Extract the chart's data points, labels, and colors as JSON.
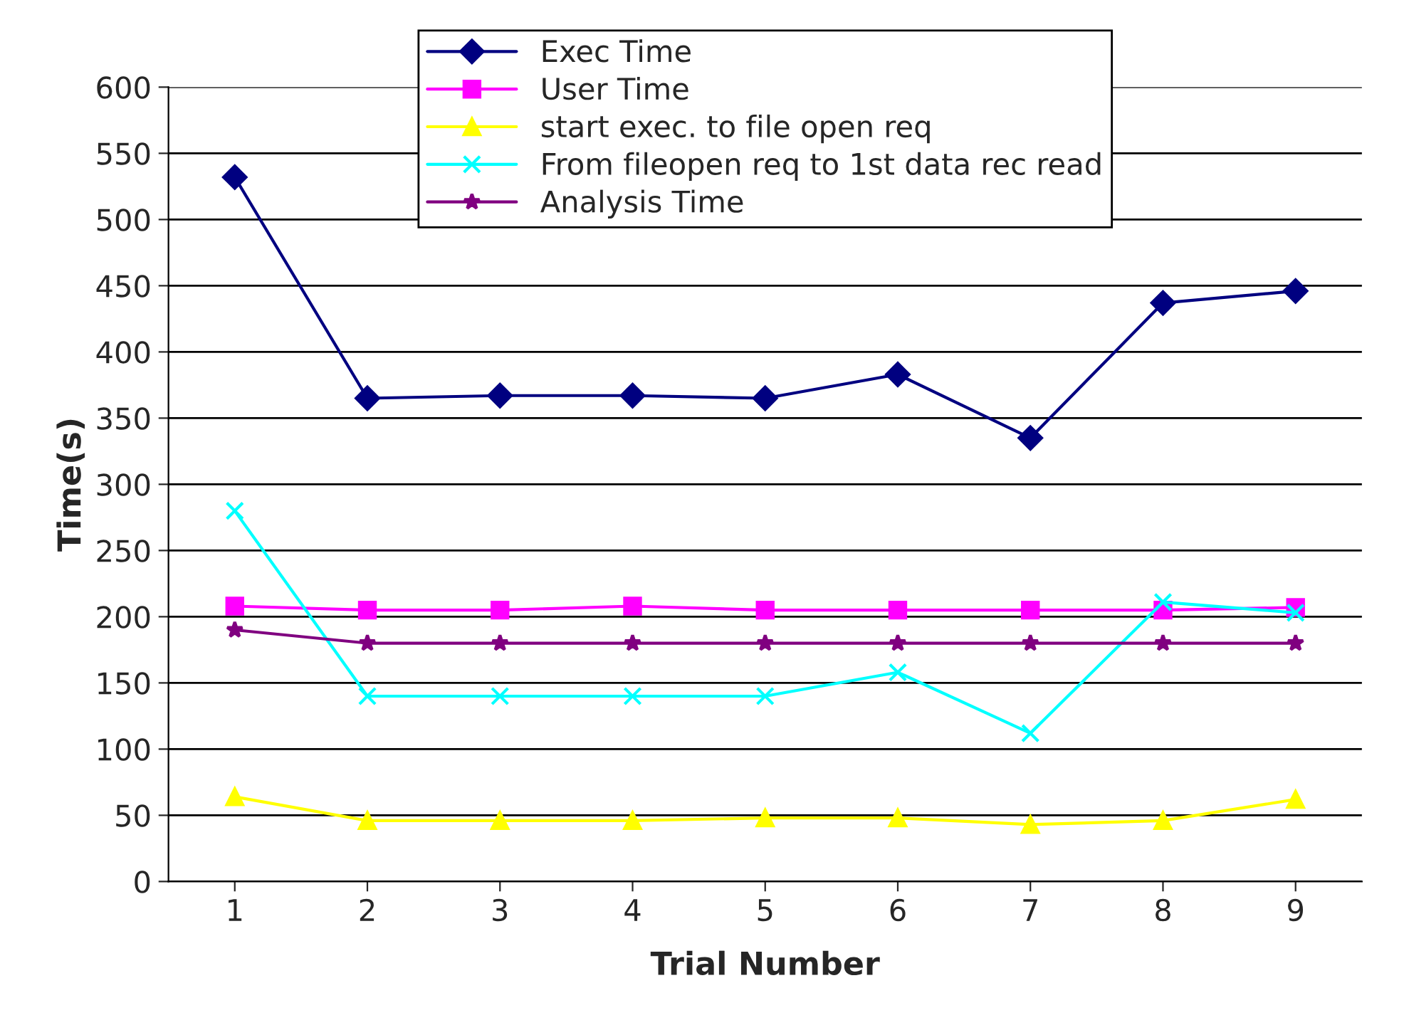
{
  "chart_data": {
    "type": "line",
    "xlabel": "Trial Number",
    "ylabel": "Time(s)",
    "categories": [
      "1",
      "2",
      "3",
      "4",
      "5",
      "6",
      "7",
      "8",
      "9"
    ],
    "series": [
      {
        "name": "Exec Time",
        "color": "#000080",
        "marker": "diamond",
        "values": [
          532,
          365,
          367,
          367,
          365,
          383,
          335,
          437,
          446
        ]
      },
      {
        "name": "User Time",
        "color": "#ff00ff",
        "marker": "square",
        "values": [
          208,
          205,
          205,
          208,
          205,
          205,
          205,
          205,
          207
        ]
      },
      {
        "name": "start exec. to file open req",
        "color": "#ffff00",
        "marker": "triangle",
        "values": [
          64,
          46,
          46,
          46,
          48,
          48,
          43,
          46,
          62
        ]
      },
      {
        "name": "From fileopen req to 1st data rec read",
        "color": "#00ffff",
        "marker": "cross",
        "values": [
          280,
          140,
          140,
          140,
          140,
          158,
          112,
          211,
          203
        ]
      },
      {
        "name": "Analysis Time",
        "color": "#800080",
        "marker": "star",
        "values": [
          190,
          180,
          180,
          180,
          180,
          180,
          180,
          180,
          180
        ]
      }
    ],
    "ylim": [
      0,
      600
    ],
    "yticks": [
      0,
      50,
      100,
      150,
      200,
      250,
      300,
      350,
      400,
      450,
      500,
      550,
      600
    ],
    "grid": "y",
    "legend": "top"
  }
}
